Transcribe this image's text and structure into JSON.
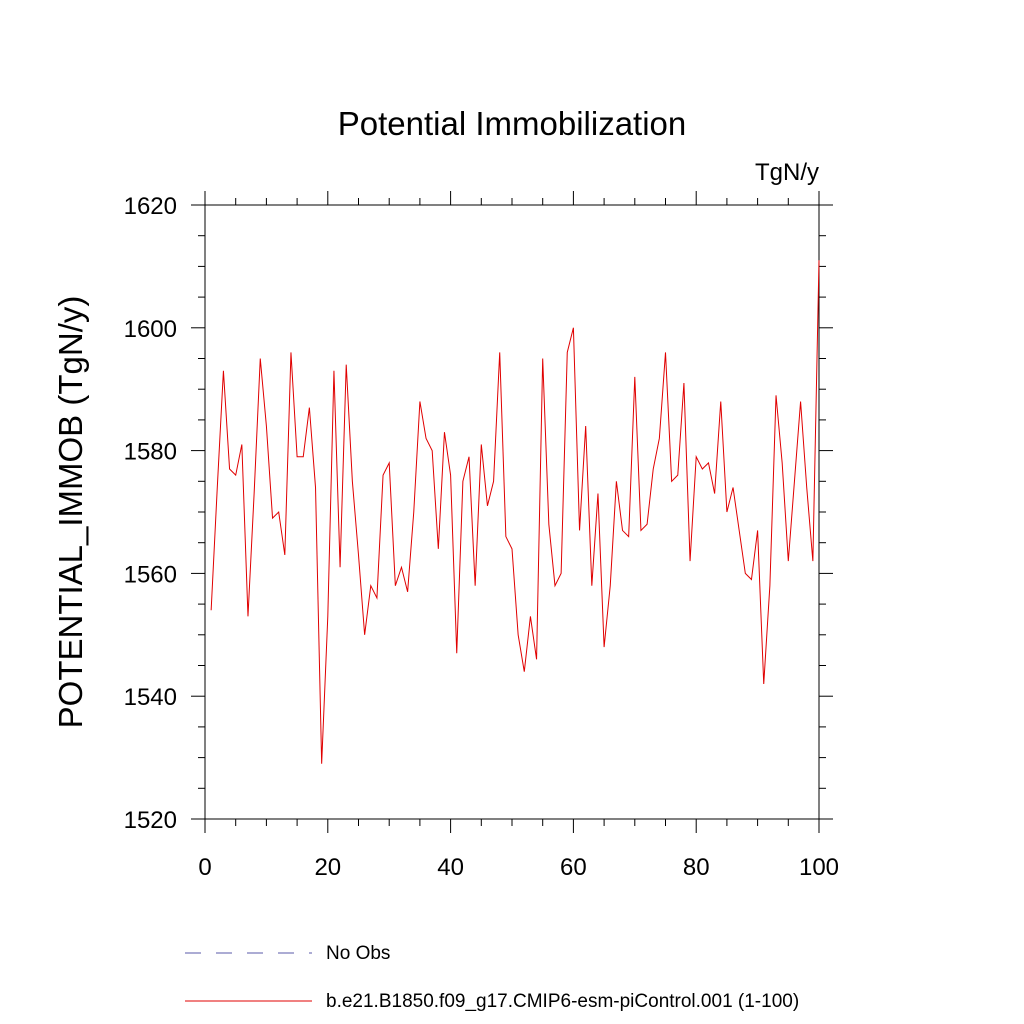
{
  "chart_data": {
    "type": "line",
    "title": "Potential Immobilization",
    "units_label": "TgN/y",
    "xlabel": "",
    "ylabel": "POTENTIAL_IMMOB  (TgN/y)",
    "xlim": [
      0,
      100
    ],
    "ylim": [
      1520,
      1620
    ],
    "x_ticks": [
      0,
      20,
      40,
      60,
      80,
      100
    ],
    "y_ticks": [
      1520,
      1540,
      1560,
      1580,
      1600,
      1620
    ],
    "grid": false,
    "legend_position": "bottom-left",
    "legend": [
      {
        "name": "No Obs",
        "color": "#5a5aa8",
        "style": "dashed"
      },
      {
        "name": "b.e21.B1850.f09_g17.CMIP6-esm-piControl.001 (1-100)",
        "color": "#e00000",
        "style": "solid"
      }
    ],
    "series": [
      {
        "name": "b.e21.B1850.f09_g17.CMIP6-esm-piControl.001 (1-100)",
        "color": "#e00000",
        "x": [
          1,
          2,
          3,
          4,
          5,
          6,
          7,
          8,
          9,
          10,
          11,
          12,
          13,
          14,
          15,
          16,
          17,
          18,
          19,
          20,
          21,
          22,
          23,
          24,
          25,
          26,
          27,
          28,
          29,
          30,
          31,
          32,
          33,
          34,
          35,
          36,
          37,
          38,
          39,
          40,
          41,
          42,
          43,
          44,
          45,
          46,
          47,
          48,
          49,
          50,
          51,
          52,
          53,
          54,
          55,
          56,
          57,
          58,
          59,
          60,
          61,
          62,
          63,
          64,
          65,
          66,
          67,
          68,
          69,
          70,
          71,
          72,
          73,
          74,
          75,
          76,
          77,
          78,
          79,
          80,
          81,
          82,
          83,
          84,
          85,
          86,
          87,
          88,
          89,
          90,
          91,
          92,
          93,
          94,
          95,
          96,
          97,
          98,
          99,
          100
        ],
        "values": [
          1554,
          1574,
          1593,
          1577,
          1576,
          1581,
          1553,
          1573,
          1595,
          1584,
          1569,
          1570,
          1563,
          1596,
          1579,
          1579,
          1587,
          1574,
          1529,
          1553,
          1593,
          1561,
          1594,
          1575,
          1563,
          1550,
          1558,
          1556,
          1576,
          1578,
          1558,
          1561,
          1557,
          1570,
          1588,
          1582,
          1580,
          1564,
          1583,
          1576,
          1547,
          1575,
          1579,
          1558,
          1581,
          1571,
          1575,
          1596,
          1566,
          1564,
          1550,
          1544,
          1553,
          1546,
          1595,
          1568,
          1558,
          1560,
          1596,
          1600,
          1567,
          1584,
          1558,
          1573,
          1548,
          1558,
          1575,
          1567,
          1566,
          1592,
          1567,
          1568,
          1577,
          1582,
          1596,
          1575,
          1576,
          1591,
          1562,
          1579,
          1577,
          1578,
          1573,
          1588,
          1570,
          1574,
          1567,
          1560,
          1559,
          1567,
          1542,
          1558,
          1589,
          1578,
          1562,
          1575,
          1588,
          1574,
          1562,
          1611
        ]
      }
    ]
  }
}
